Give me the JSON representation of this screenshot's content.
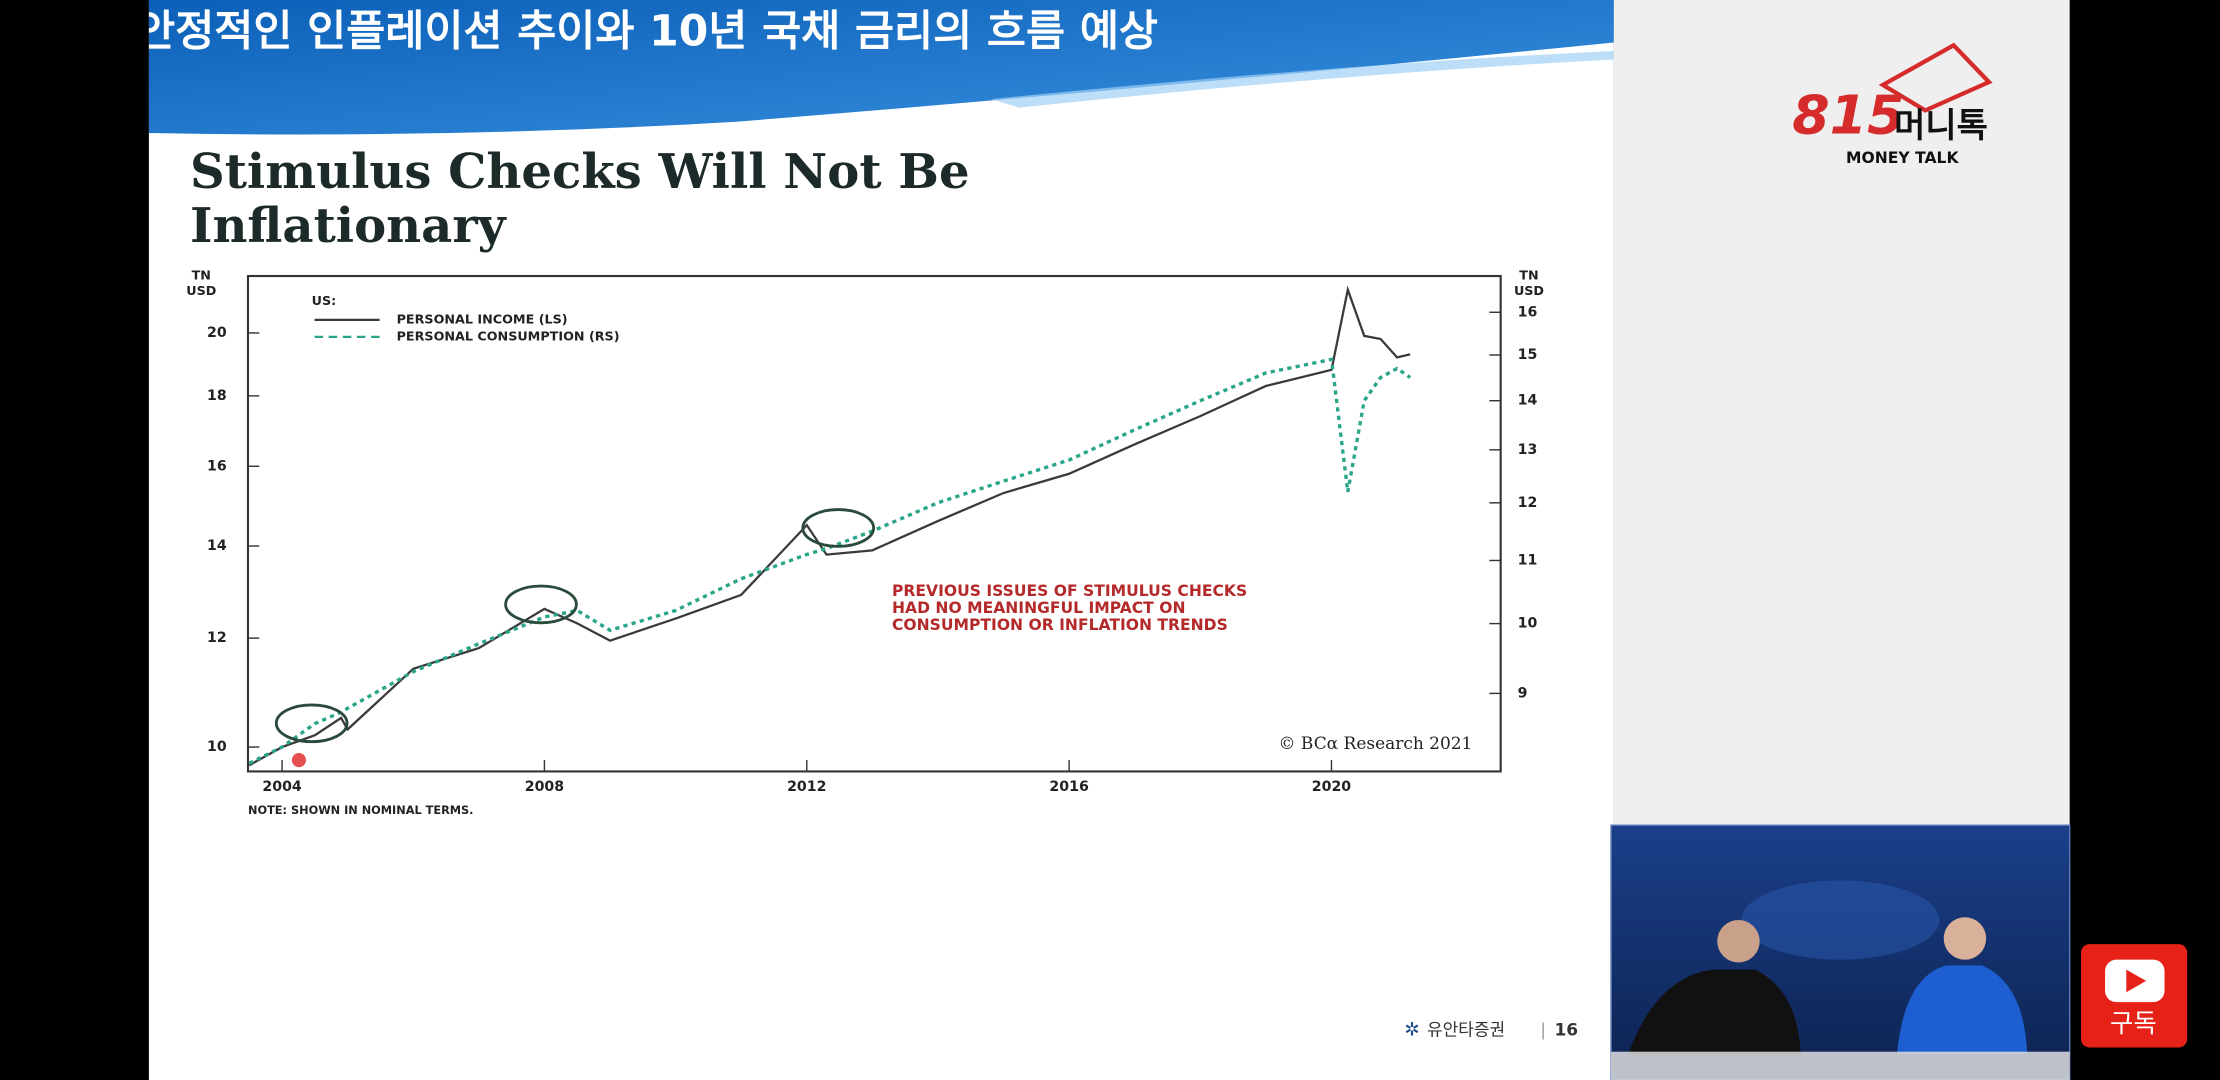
{
  "header_title": "안정적인 인플레이션 추이와 10년 국채 금리의 흐름 예상",
  "chart_title_lines": [
    "Stimulus Checks Will Not Be",
    "Inflationary"
  ],
  "chart_data": {
    "type": "line",
    "ylabel_lines": [
      "TN",
      "USD"
    ],
    "y2label_lines": [
      "TN",
      "USD"
    ],
    "legend_title": "US:",
    "x": [
      2003.5,
      2004,
      2004.5,
      2004.9,
      2005,
      2006,
      2007,
      2008,
      2008.5,
      2009,
      2010,
      2011,
      2012,
      2012.3,
      2013,
      2014,
      2015,
      2016,
      2017,
      2018,
      2019,
      2020,
      2020.25,
      2020.5,
      2020.75,
      2021,
      2021.2
    ],
    "series": [
      {
        "name": "PERSONAL INCOME (LS)",
        "color": "#3a3a3a",
        "line_style": "solid",
        "axis": "y",
        "values": [
          9.7,
          10.0,
          10.2,
          10.5,
          10.3,
          11.4,
          11.8,
          12.6,
          12.3,
          11.95,
          12.4,
          12.9,
          14.5,
          13.8,
          13.9,
          14.6,
          15.3,
          15.8,
          16.6,
          17.4,
          18.3,
          18.8,
          21.5,
          19.9,
          19.8,
          19.2,
          19.3
        ]
      },
      {
        "name": "PERSONAL CONSUMPTION (RS)",
        "color": "#2aa58a",
        "line_style": "dashed",
        "axis": "y2",
        "values": [
          8.1,
          8.3,
          8.6,
          8.75,
          8.8,
          9.3,
          9.7,
          10.1,
          10.2,
          9.9,
          10.2,
          10.7,
          11.1,
          11.2,
          11.5,
          12.0,
          12.4,
          12.8,
          13.4,
          14.0,
          14.6,
          14.9,
          12.2,
          14.0,
          14.5,
          14.7,
          14.5
        ]
      }
    ],
    "xlim": [
      2003.48,
      2022.58
    ],
    "xticks": [
      2004,
      2008,
      2012,
      2016,
      2020
    ],
    "ylim": [
      9.6,
      22
    ],
    "yticks": [
      10,
      12,
      14,
      16,
      18,
      20
    ],
    "ylog": true,
    "y2lim": [
      8.0,
      16.9
    ],
    "y2ticks": [
      9,
      10,
      11,
      12,
      13,
      14,
      15,
      16
    ],
    "y2log": true,
    "annotation_lines": [
      "PREVIOUS ISSUES OF STIMULUS CHECKS",
      "HAD NO MEANINGFUL IMPACT ON",
      "CONSUMPTION OR INFLATION TRENDS"
    ],
    "credit": "© BCα Research 2021",
    "note": "NOTE: SHOWN IN NOMINAL TERMS."
  },
  "footer": {
    "brand": "유안타증권",
    "page": 16
  },
  "logo": {
    "number": "815",
    "name": "머니톡",
    "sub": "MONEY TALK"
  },
  "subscribe": "구독"
}
